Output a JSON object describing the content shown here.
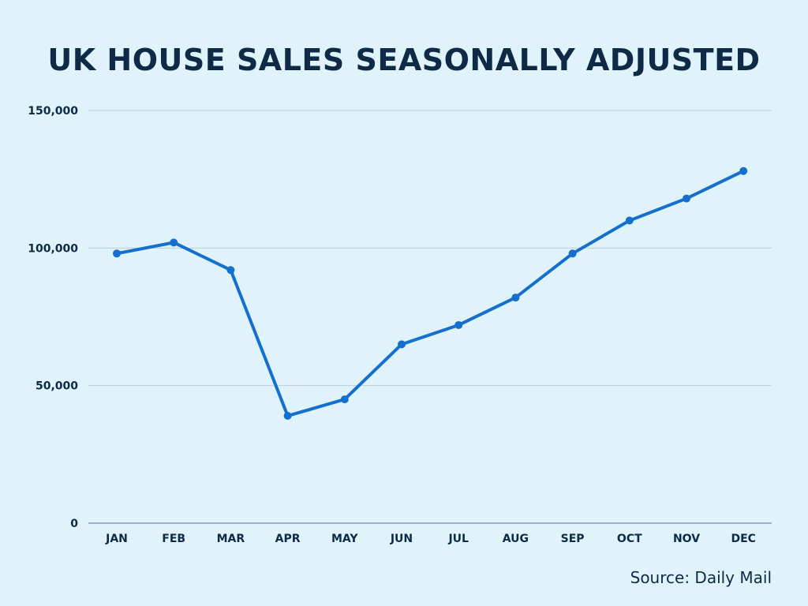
{
  "chart_data": {
    "type": "line",
    "title": "UK HOUSE SALES SEASONALLY ADJUSTED",
    "xlabel": "",
    "ylabel": "",
    "categories": [
      "JAN",
      "FEB",
      "MAR",
      "APR",
      "MAY",
      "JUN",
      "JUL",
      "AUG",
      "SEP",
      "OCT",
      "NOV",
      "DEC"
    ],
    "series": [
      {
        "values": [
          98000,
          102000,
          92000,
          39000,
          45000,
          65000,
          72000,
          82000,
          98000,
          110000,
          118000,
          128000
        ]
      }
    ],
    "ylim": [
      0,
      150000
    ],
    "yticks": [
      0,
      50000,
      100000,
      150000
    ],
    "ytick_labels": [
      "0",
      "50,000",
      "100,000",
      "150,000"
    ],
    "grid": true,
    "legend": "none",
    "source": "Source: Daily Mail",
    "colors": {
      "background": "#e0f3fa",
      "line": "#1470cc",
      "text": "#0e2a47",
      "grid": "#b9cfdc",
      "axis": "#7f9fc0"
    }
  }
}
